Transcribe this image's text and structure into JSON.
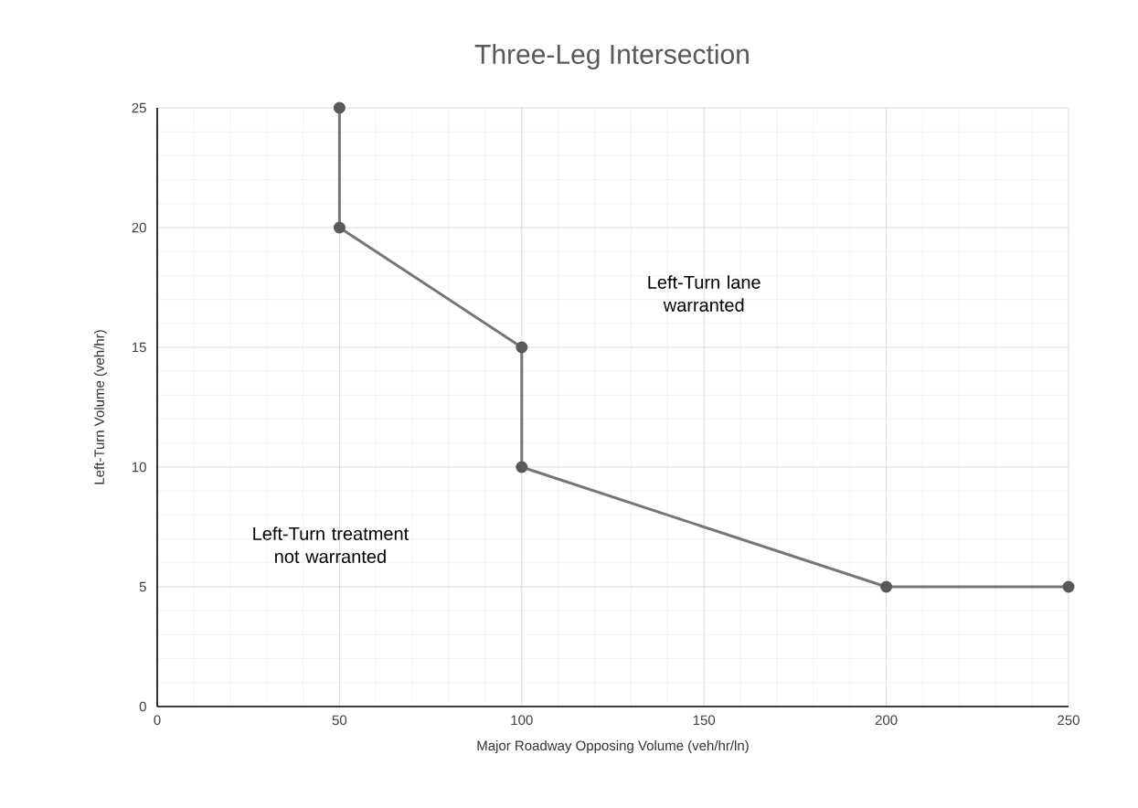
{
  "chart_data": {
    "type": "line",
    "title": "Three-Leg Intersection",
    "xlabel": "Major Roadway Opposing Volume (veh/hr/ln)",
    "ylabel": "Left-Turn Volume (veh/hr)",
    "x": [
      50,
      50,
      100,
      100,
      200,
      250
    ],
    "series": [
      {
        "color": "#767676",
        "values": [
          25,
          20,
          15,
          10,
          5,
          5
        ]
      }
    ],
    "xlim": [
      0,
      250
    ],
    "ylim": [
      0,
      25
    ],
    "xticks": [
      0,
      50,
      100,
      150,
      200,
      250
    ],
    "yticks": [
      0,
      5,
      10,
      15,
      20,
      25
    ],
    "grid": true,
    "marker": "circle",
    "line_style": "solid",
    "annotations": [
      "Left-Turn lane warranted",
      "Left-Turn treatment not warranted"
    ]
  }
}
